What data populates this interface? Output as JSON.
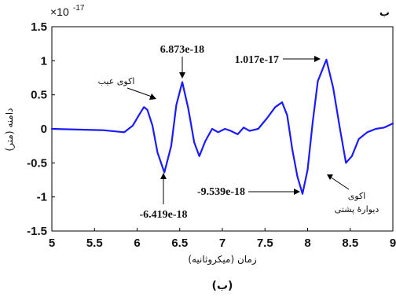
{
  "chart_data": {
    "type": "line",
    "corner_label": "ب",
    "caption": "(ب)",
    "xlabel": "زمان (میکروثانیه)",
    "ylabel": "دامنه (متر)",
    "exponent_base": "×10",
    "exponent_power": "-17",
    "xlim": [
      5,
      9
    ],
    "ylim": [
      -1.5,
      1.5
    ],
    "grid": false,
    "x_ticks": [
      5,
      5.5,
      6,
      6.5,
      7,
      7.5,
      8,
      8.5,
      9
    ],
    "x_tick_labels": [
      "5",
      "5.5",
      "6",
      "6.5",
      "7",
      "7.5",
      "8",
      "8.5",
      "9"
    ],
    "y_ticks": [
      1.5,
      1,
      0.5,
      0,
      -0.5,
      -1,
      -1.5
    ],
    "y_tick_labels": [
      "1.5",
      "1",
      "0.5",
      "0",
      "-0.5",
      "-1",
      "-1.5"
    ],
    "line_color": "#1a1aff",
    "series": [
      {
        "x": [
          5.0,
          5.3,
          5.6,
          5.85,
          5.95,
          6.02,
          6.08,
          6.12,
          6.18,
          6.24,
          6.32,
          6.4,
          6.46,
          6.53,
          6.6,
          6.67,
          6.73,
          6.8,
          6.88,
          6.95,
          7.03,
          7.1,
          7.18,
          7.25,
          7.32,
          7.42,
          7.52,
          7.62,
          7.7,
          7.76,
          7.82,
          7.88,
          7.94,
          8.0,
          8.06,
          8.12,
          8.22,
          8.3,
          8.38,
          8.45,
          8.52,
          8.6,
          8.7,
          8.8,
          8.9,
          9.0
        ],
        "y": [
          0,
          -0.01,
          -0.02,
          -0.05,
          0.05,
          0.2,
          0.32,
          0.28,
          0.05,
          -0.35,
          -0.64,
          -0.25,
          0.35,
          0.687,
          0.3,
          -0.2,
          -0.4,
          -0.18,
          0.0,
          -0.05,
          0.0,
          -0.03,
          -0.08,
          0.02,
          -0.03,
          0.0,
          0.15,
          0.32,
          0.39,
          0.2,
          -0.3,
          -0.7,
          -0.954,
          -0.6,
          0.1,
          0.7,
          1.017,
          0.6,
          0.0,
          -0.5,
          -0.4,
          -0.15,
          -0.05,
          0.0,
          0.02,
          0.08
        ]
      }
    ],
    "annotations": [
      {
        "text": "6.873e-18",
        "x": 6.53,
        "y": 0.687
      },
      {
        "text": "1.017e-17",
        "x": 8.22,
        "y": 1.017
      },
      {
        "text": "-6.419e-18",
        "x": 6.32,
        "y": -0.642
      },
      {
        "text": "-9.539e-18",
        "x": 7.94,
        "y": -0.954
      }
    ],
    "echo_labels": {
      "defect": "اکوی عیب",
      "back_wall_line1": "اکوی",
      "back_wall_line2": "دیوارهٔ پشتی"
    }
  }
}
